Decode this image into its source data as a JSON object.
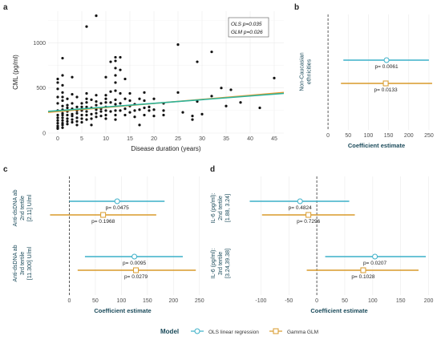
{
  "colors": {
    "ols": "#3cb0c8",
    "glm": "#d89a2a",
    "scatter_ols_line": "#2db39a",
    "scatter_glm_line": "#f29a2e",
    "points": "#111111"
  },
  "panels": {
    "a": {
      "letter": "a"
    },
    "b": {
      "letter": "b"
    },
    "c": {
      "letter": "c"
    },
    "d": {
      "letter": "d"
    }
  },
  "legend": {
    "title": "Model",
    "items": [
      {
        "label": "OLS linear regression",
        "color": "#3cb0c8",
        "shape": "circle"
      },
      {
        "label": "Gamma GLM",
        "color": "#d89a2a",
        "shape": "square"
      }
    ]
  },
  "chart_data": [
    {
      "panel": "a",
      "type": "scatter",
      "xlabel": "Disease duration (years)",
      "ylabel": "CML (pg/ml)",
      "xlim": [
        -2,
        47
      ],
      "ylim": [
        0,
        1350
      ],
      "xticks": [
        0,
        5,
        10,
        15,
        20,
        25,
        30,
        35,
        40,
        45
      ],
      "yticks": [
        0,
        500,
        1000
      ],
      "grid": true,
      "annotation": {
        "ols": "OLS p=0.035",
        "glm": "GLM p=0.026",
        "placement": "top-right"
      },
      "fit_lines": [
        {
          "name": "OLS",
          "x": [
            -2,
            47
          ],
          "y": [
            240,
            440
          ]
        },
        {
          "name": "GLM",
          "x": [
            -2,
            47
          ],
          "y": [
            230,
            450
          ]
        }
      ],
      "points": [
        [
          0,
          560
        ],
        [
          0,
          600
        ],
        [
          0,
          490
        ],
        [
          0,
          400
        ],
        [
          0,
          330
        ],
        [
          0,
          250
        ],
        [
          0,
          200
        ],
        [
          0,
          170
        ],
        [
          0,
          140
        ],
        [
          0,
          110
        ],
        [
          0,
          80
        ],
        [
          0,
          60
        ],
        [
          0,
          50
        ],
        [
          1,
          830
        ],
        [
          1,
          640
        ],
        [
          1,
          530
        ],
        [
          1,
          450
        ],
        [
          1,
          400
        ],
        [
          1,
          360
        ],
        [
          1,
          300
        ],
        [
          1,
          260
        ],
        [
          1,
          220
        ],
        [
          1,
          200
        ],
        [
          1,
          170
        ],
        [
          1,
          140
        ],
        [
          1,
          110
        ],
        [
          1,
          90
        ],
        [
          1,
          60
        ],
        [
          2,
          380
        ],
        [
          2,
          310
        ],
        [
          2,
          280
        ],
        [
          2,
          240
        ],
        [
          2,
          200
        ],
        [
          2,
          160
        ],
        [
          2,
          130
        ],
        [
          2,
          100
        ],
        [
          3,
          620
        ],
        [
          3,
          430
        ],
        [
          3,
          330
        ],
        [
          3,
          270
        ],
        [
          3,
          210
        ],
        [
          3,
          190
        ],
        [
          3,
          150
        ],
        [
          3,
          120
        ],
        [
          4,
          400
        ],
        [
          4,
          290
        ],
        [
          4,
          250
        ],
        [
          4,
          220
        ],
        [
          4,
          170
        ],
        [
          4,
          130
        ],
        [
          4,
          90
        ],
        [
          5,
          330
        ],
        [
          5,
          290
        ],
        [
          5,
          250
        ],
        [
          5,
          200
        ],
        [
          5,
          160
        ],
        [
          5,
          120
        ],
        [
          6,
          1180
        ],
        [
          6,
          440
        ],
        [
          6,
          380
        ],
        [
          6,
          340
        ],
        [
          6,
          290
        ],
        [
          6,
          240
        ],
        [
          6,
          200
        ],
        [
          6,
          150
        ],
        [
          7,
          370
        ],
        [
          7,
          280
        ],
        [
          7,
          210
        ],
        [
          7,
          160
        ],
        [
          7,
          90
        ],
        [
          8,
          1300
        ],
        [
          8,
          420
        ],
        [
          8,
          350
        ],
        [
          8,
          310
        ],
        [
          8,
          260
        ],
        [
          8,
          220
        ],
        [
          8,
          180
        ],
        [
          9,
          330
        ],
        [
          9,
          270
        ],
        [
          9,
          240
        ],
        [
          9,
          190
        ],
        [
          10,
          620
        ],
        [
          10,
          420
        ],
        [
          10,
          380
        ],
        [
          10,
          340
        ],
        [
          10,
          290
        ],
        [
          10,
          250
        ],
        [
          10,
          200
        ],
        [
          10,
          160
        ],
        [
          11,
          790
        ],
        [
          11,
          460
        ],
        [
          11,
          340
        ],
        [
          11,
          240
        ],
        [
          12,
          800
        ],
        [
          12,
          840
        ],
        [
          12,
          720
        ],
        [
          12,
          640
        ],
        [
          12,
          560
        ],
        [
          12,
          470
        ],
        [
          12,
          370
        ],
        [
          12,
          320
        ],
        [
          12,
          250
        ],
        [
          12,
          200
        ],
        [
          12,
          150
        ],
        [
          13,
          840
        ],
        [
          13,
          700
        ],
        [
          13,
          440
        ],
        [
          13,
          330
        ],
        [
          13,
          250
        ],
        [
          14,
          600
        ],
        [
          14,
          380
        ],
        [
          14,
          270
        ],
        [
          14,
          200
        ],
        [
          15,
          440
        ],
        [
          15,
          360
        ],
        [
          15,
          300
        ],
        [
          15,
          230
        ],
        [
          16,
          320
        ],
        [
          16,
          250
        ],
        [
          16,
          180
        ],
        [
          17,
          380
        ],
        [
          17,
          260
        ],
        [
          17,
          90
        ],
        [
          18,
          450
        ],
        [
          18,
          360
        ],
        [
          18,
          280
        ],
        [
          18,
          200
        ],
        [
          19,
          290
        ],
        [
          19,
          250
        ],
        [
          20,
          380
        ],
        [
          20,
          260
        ],
        [
          20,
          190
        ],
        [
          22,
          330
        ],
        [
          22,
          250
        ],
        [
          22,
          200
        ],
        [
          25,
          980
        ],
        [
          25,
          450
        ],
        [
          26,
          230
        ],
        [
          28,
          190
        ],
        [
          28,
          150
        ],
        [
          29,
          790
        ],
        [
          29,
          350
        ],
        [
          30,
          210
        ],
        [
          32,
          900
        ],
        [
          32,
          410
        ],
        [
          34,
          500
        ],
        [
          35,
          300
        ],
        [
          36,
          480
        ],
        [
          38,
          340
        ],
        [
          42,
          280
        ],
        [
          45,
          610
        ]
      ]
    },
    {
      "panel": "b",
      "type": "scatter",
      "xlabel": "Coefficient estimate",
      "xlim": [
        -30,
        270
      ],
      "xticks": [
        0,
        50,
        100,
        150,
        200,
        250
      ],
      "zero_line": 0,
      "grid": true,
      "groups": [
        {
          "label_lines": [
            "Non-Caucasian",
            "ethnicities"
          ],
          "estimates": [
            {
              "model": "OLS linear regression",
              "estimate": 145,
              "ci": [
                38,
                250
              ],
              "p_label": "p= 0.0061"
            },
            {
              "model": "Gamma GLM",
              "estimate": 143,
              "ci": [
                32,
                258
              ],
              "p_label": "p= 0.0133"
            }
          ]
        }
      ]
    },
    {
      "panel": "c",
      "type": "scatter",
      "xlabel": "Coefficient estimate",
      "xlim": [
        -50,
        255
      ],
      "xticks": [
        0,
        50,
        100,
        150,
        200,
        250
      ],
      "zero_line": 0,
      "grid": true,
      "groups": [
        {
          "label_lines": [
            "Anti-dsDNA ab",
            "2nd tertile",
            "[2.11] U/ml"
          ],
          "estimates": [
            {
              "model": "OLS linear regression",
              "estimate": 92,
              "ci": [
                0,
                183
              ],
              "p_label": "p= 0.0475"
            },
            {
              "model": "Gamma GLM",
              "estimate": 65,
              "ci": [
                -37,
                167
              ],
              "p_label": "p= 0.1968"
            }
          ]
        },
        {
          "label_lines": [
            "Anti-dsDNA ab",
            "3rd tertile",
            "[11.300] U/ml"
          ],
          "estimates": [
            {
              "model": "OLS linear regression",
              "estimate": 125,
              "ci": [
                30,
                218
              ],
              "p_label": "p= 0.0095"
            },
            {
              "model": "Gamma GLM",
              "estimate": 128,
              "ci": [
                16,
                243
              ],
              "p_label": "p= 0.0279"
            }
          ]
        }
      ]
    },
    {
      "panel": "d",
      "type": "scatter",
      "xlabel": "Coefficient estimate",
      "xlim": [
        -135,
        215
      ],
      "xticks": [
        -100,
        -50,
        0,
        50,
        100,
        150,
        200
      ],
      "zero_line": 0,
      "grid": true,
      "groups": [
        {
          "label_lines": [
            "IL-6 (pg/ml):",
            "2nd tertile",
            "[1.88, 3.24]"
          ],
          "estimates": [
            {
              "model": "OLS linear regression",
              "estimate": -30,
              "ci": [
                -120,
                58
              ],
              "p_label": "p= 0.4824"
            },
            {
              "model": "Gamma GLM",
              "estimate": -15,
              "ci": [
                -98,
                68
              ],
              "p_label": "p= 0.7296"
            }
          ]
        },
        {
          "label_lines": [
            "IL-6 (pg/ml):",
            "3rd tertile",
            "[3.24,39.38]"
          ],
          "estimates": [
            {
              "model": "OLS linear regression",
              "estimate": 104,
              "ci": [
                15,
                195
              ],
              "p_label": "p= 0.0207"
            },
            {
              "model": "Gamma GLM",
              "estimate": 83,
              "ci": [
                -18,
                182
              ],
              "p_label": "p= 0.1028"
            }
          ]
        }
      ]
    }
  ]
}
